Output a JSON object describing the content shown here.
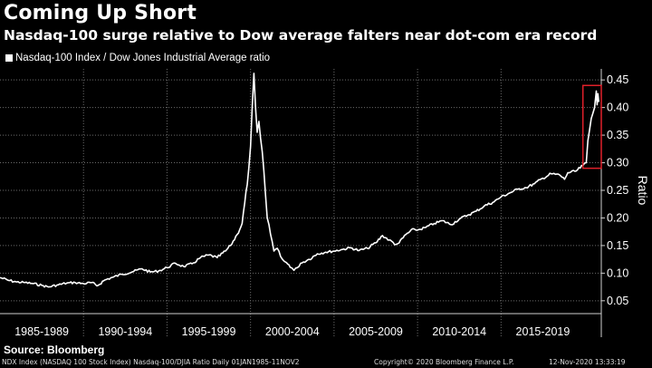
{
  "header": {
    "title": "Coming Up Short",
    "subtitle": "Nasdaq-100 surge relative to Dow average falters near dot-com era record"
  },
  "footer": {
    "source": "Source: Bloomberg",
    "ticker_info": "NDX Index (NASDAQ 100 Stock Index) Nasdaq-100/DJIA Ratio  Daily 01JAN1985-11NOV2",
    "copyright": "Copyright© 2020 Bloomberg Finance L.P.",
    "timestamp": "12-Nov-2020 13:33:19"
  },
  "colors": {
    "background": "#000000",
    "series": "#ffffff",
    "highlight_box": "#e0202a",
    "grid": "#6a6a6a"
  },
  "chart_data": {
    "type": "line",
    "title": "Coming Up Short",
    "subtitle": "Nasdaq-100 surge relative to Dow average falters near dot-com era record",
    "xlabel": "",
    "ylabel": "Ratio",
    "y_axis_side": "right",
    "ylim": [
      0.03,
      0.47
    ],
    "xlim": [
      1985.0,
      2021.0
    ],
    "y_ticks": [
      0.05,
      0.1,
      0.15,
      0.2,
      0.25,
      0.3,
      0.35,
      0.4,
      0.45
    ],
    "y_tick_labels": [
      "0.05",
      "0.10",
      "0.15",
      "0.20",
      "0.25",
      "0.30",
      "0.35",
      "0.40",
      "0.45"
    ],
    "x_periods": [
      {
        "label": "1985-1989",
        "start": 1985,
        "end": 1990
      },
      {
        "label": "1990-1994",
        "start": 1990,
        "end": 1995
      },
      {
        "label": "1995-1999",
        "start": 1995,
        "end": 2000
      },
      {
        "label": "2000-2004",
        "start": 2000,
        "end": 2005
      },
      {
        "label": "2005-2009",
        "start": 2005,
        "end": 2010
      },
      {
        "label": "2010-2014",
        "start": 2010,
        "end": 2015
      },
      {
        "label": "2015-2019",
        "start": 2015,
        "end": 2020
      }
    ],
    "grid": true,
    "legend": {
      "position": "top-left",
      "entries": [
        "Nasdaq-100 Index / Dow Jones Industrial Average ratio"
      ]
    },
    "annotations": [
      {
        "type": "highlight-box",
        "x_range": [
          2019.9,
          2021.0
        ],
        "y_range": [
          0.29,
          0.44
        ],
        "color": "#e0202a"
      }
    ],
    "series": [
      {
        "name": "Nasdaq-100 Index / Dow Jones Industrial Average ratio",
        "x": [
          1985.0,
          1985.5,
          1986.0,
          1986.5,
          1987.0,
          1987.5,
          1987.9,
          1988.5,
          1989.0,
          1989.5,
          1990.0,
          1990.5,
          1990.8,
          1991.3,
          1991.8,
          1992.3,
          1993.0,
          1993.5,
          1994.0,
          1994.5,
          1995.0,
          1995.5,
          1996.0,
          1996.5,
          1997.0,
          1997.5,
          1998.0,
          1998.5,
          1998.8,
          1999.2,
          1999.5,
          1999.8,
          2000.0,
          2000.1,
          2000.2,
          2000.3,
          2000.4,
          2000.5,
          2000.6,
          2000.7,
          2000.9,
          2001.0,
          2001.2,
          2001.4,
          2001.6,
          2001.8,
          2002.0,
          2002.3,
          2002.6,
          2002.8,
          2003.0,
          2003.5,
          2004.0,
          2004.5,
          2005.0,
          2005.5,
          2006.0,
          2006.5,
          2007.0,
          2007.5,
          2007.9,
          2008.3,
          2008.7,
          2008.9,
          2009.3,
          2009.8,
          2010.0,
          2010.5,
          2011.0,
          2011.5,
          2012.0,
          2012.5,
          2013.0,
          2013.5,
          2014.0,
          2014.5,
          2015.0,
          2015.5,
          2016.0,
          2016.5,
          2017.0,
          2017.5,
          2018.0,
          2018.5,
          2018.8,
          2019.0,
          2019.5,
          2019.9,
          2020.1,
          2020.2,
          2020.3,
          2020.4,
          2020.5,
          2020.6,
          2020.7,
          2020.75,
          2020.8,
          2020.85
        ],
        "values": [
          0.092,
          0.087,
          0.084,
          0.083,
          0.081,
          0.078,
          0.075,
          0.079,
          0.082,
          0.083,
          0.081,
          0.083,
          0.077,
          0.088,
          0.093,
          0.098,
          0.103,
          0.108,
          0.102,
          0.104,
          0.11,
          0.118,
          0.112,
          0.117,
          0.128,
          0.133,
          0.128,
          0.14,
          0.15,
          0.17,
          0.19,
          0.26,
          0.33,
          0.4,
          0.462,
          0.4,
          0.355,
          0.375,
          0.345,
          0.32,
          0.24,
          0.2,
          0.17,
          0.14,
          0.145,
          0.13,
          0.122,
          0.115,
          0.105,
          0.11,
          0.118,
          0.125,
          0.135,
          0.138,
          0.14,
          0.143,
          0.146,
          0.141,
          0.145,
          0.155,
          0.168,
          0.16,
          0.152,
          0.155,
          0.17,
          0.18,
          0.178,
          0.183,
          0.19,
          0.195,
          0.188,
          0.198,
          0.205,
          0.212,
          0.222,
          0.228,
          0.238,
          0.245,
          0.252,
          0.255,
          0.262,
          0.272,
          0.28,
          0.278,
          0.27,
          0.282,
          0.285,
          0.295,
          0.3,
          0.34,
          0.36,
          0.38,
          0.39,
          0.4,
          0.43,
          0.405,
          0.425,
          0.41
        ]
      }
    ]
  }
}
